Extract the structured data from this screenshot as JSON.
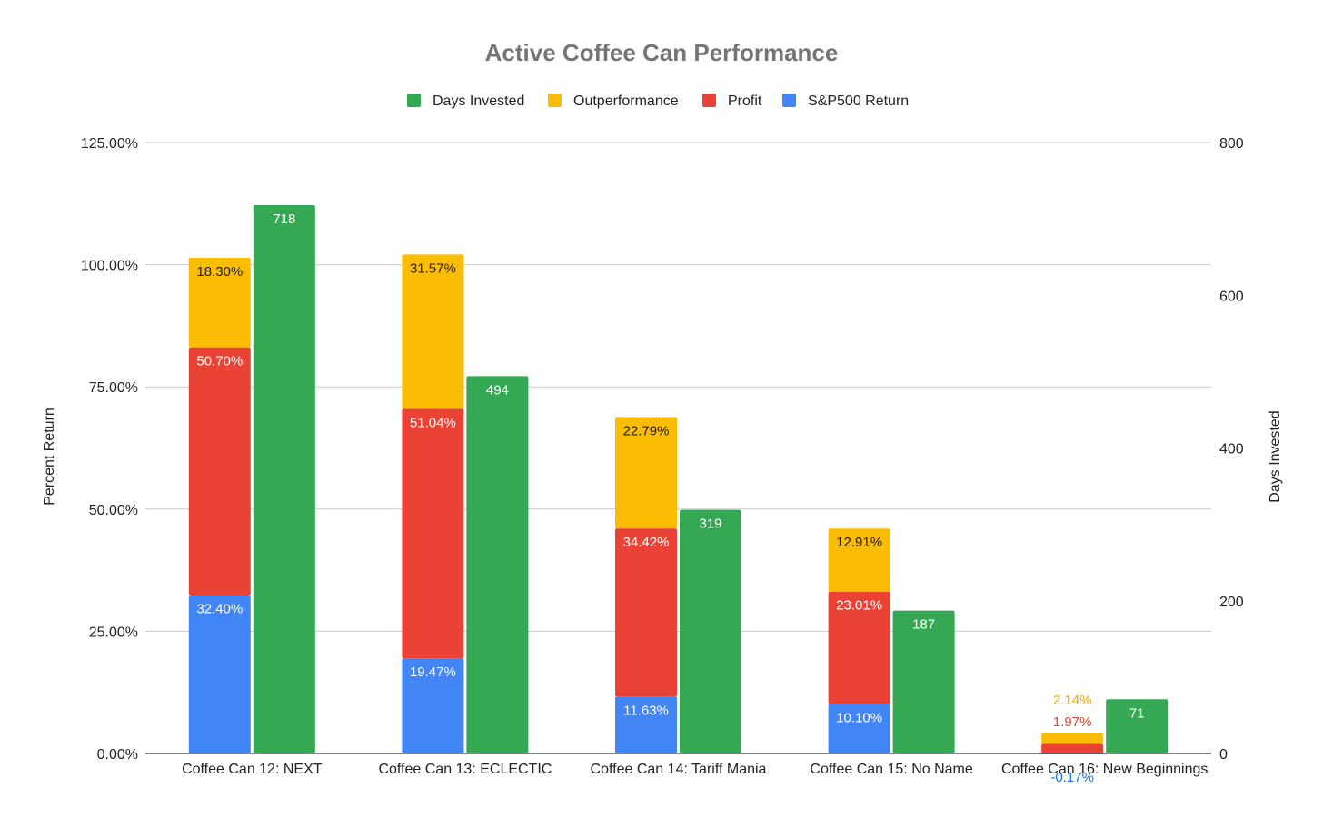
{
  "chart_data": {
    "type": "bar",
    "title": "Active Coffee Can Performance",
    "categories": [
      "Coffee Can 12: NEXT",
      "Coffee Can 13: ECLECTIC",
      "Coffee Can 14: Tariff Mania",
      "Coffee Can 15: No Name",
      "Coffee Can 16: New Beginnings"
    ],
    "stacked_series_order": [
      "S&P500 Return",
      "Profit",
      "Outperformance"
    ],
    "series": [
      {
        "name": "S&P500 Return",
        "axis": "left",
        "stack": "returns",
        "color": "#4285f4",
        "label_color": "#ffffff",
        "values": [
          32.4,
          19.47,
          11.63,
          10.1,
          -0.17
        ],
        "labels": [
          "32.40%",
          "19.47%",
          "11.63%",
          "10.10%",
          "-0.17%"
        ]
      },
      {
        "name": "Profit",
        "axis": "left",
        "stack": "returns",
        "color": "#ea4335",
        "label_color": "#ffffff",
        "values": [
          50.7,
          51.04,
          34.42,
          23.01,
          1.97
        ],
        "labels": [
          "50.70%",
          "51.04%",
          "34.42%",
          "23.01%",
          "1.97%"
        ]
      },
      {
        "name": "Outperformance",
        "axis": "left",
        "stack": "returns",
        "color": "#fbbc04",
        "label_color": "#222222",
        "values": [
          18.3,
          31.57,
          22.79,
          12.91,
          2.14
        ],
        "labels": [
          "18.30%",
          "31.57%",
          "22.79%",
          "12.91%",
          "2.14%"
        ]
      },
      {
        "name": "Days Invested",
        "axis": "right",
        "color": "#34a853",
        "label_color": "#ffffff",
        "values": [
          718,
          494,
          319,
          187,
          71
        ],
        "labels": [
          "718",
          "494",
          "319",
          "187",
          "71"
        ]
      }
    ],
    "legend": {
      "position": "top",
      "entries": [
        {
          "name": "Days Invested",
          "color": "#34a853"
        },
        {
          "name": "Outperformance",
          "color": "#fbbc04"
        },
        {
          "name": "Profit",
          "color": "#ea4335"
        },
        {
          "name": "S&P500 Return",
          "color": "#4285f4"
        }
      ]
    },
    "y_left": {
      "label": "Percent Return",
      "ylim": [
        0,
        125
      ],
      "ticks": [
        0,
        25,
        50,
        75,
        100,
        125
      ],
      "tick_labels": [
        "0.00%",
        "25.00%",
        "50.00%",
        "75.00%",
        "100.00%",
        "125.00%"
      ]
    },
    "y_right": {
      "label": "Days Invested",
      "ylim": [
        0,
        800
      ],
      "ticks": [
        0,
        200,
        400,
        600,
        800
      ],
      "tick_labels": [
        "0",
        "200",
        "400",
        "600",
        "800"
      ]
    },
    "grid": true
  }
}
